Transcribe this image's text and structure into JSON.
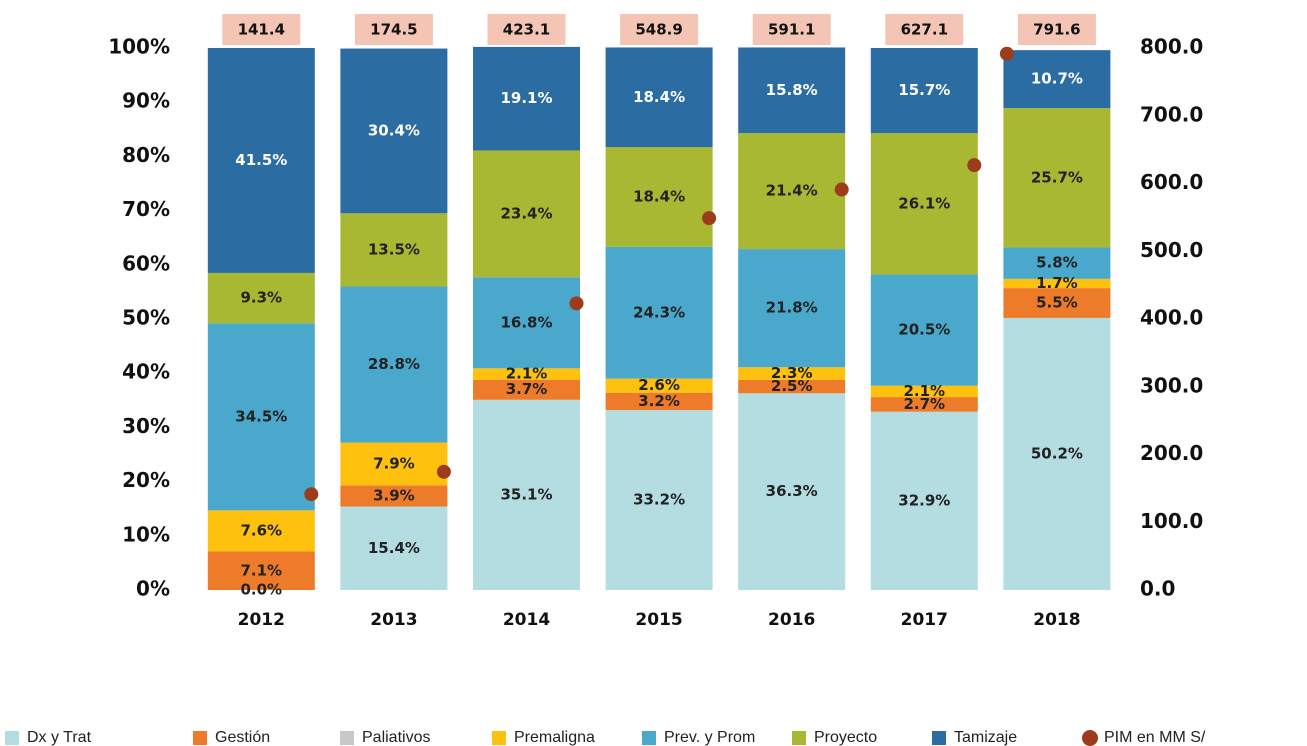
{
  "chart_data": {
    "type": "stacked_bar",
    "categories": [
      "2012",
      "2013",
      "2014",
      "2015",
      "2016",
      "2017",
      "2018"
    ],
    "series": [
      {
        "name": "Dx y Trat",
        "color": "#b3dde0",
        "label_color": "#222222",
        "values": [
          0.0,
          15.4,
          35.1,
          33.2,
          36.3,
          32.9,
          50.2
        ],
        "value_labels": [
          "0.0%",
          "15.4%",
          "35.1%",
          "33.2%",
          "36.3%",
          "32.9%",
          "50.2%"
        ]
      },
      {
        "name": "Gestión",
        "color": "#ee7b2a",
        "label_color": "#222222",
        "values": [
          7.1,
          3.9,
          3.7,
          3.2,
          2.5,
          2.7,
          5.5
        ],
        "value_labels": [
          "7.1%",
          "3.9%",
          "3.7%",
          "3.2%",
          "2.5%",
          "2.7%",
          "5.5%"
        ]
      },
      {
        "name": "Paliativos",
        "color": "#c8c8c8",
        "label_color": "#222222",
        "values": [
          0,
          0,
          0,
          0,
          0,
          0,
          0
        ]
      },
      {
        "name": "Premaligna",
        "color": "#fec10e",
        "label_color": "#222222",
        "values": [
          7.6,
          7.9,
          2.1,
          2.6,
          2.3,
          2.1,
          1.7
        ],
        "value_labels": [
          "7.6%",
          "7.9%",
          "2.1%",
          "2.6%",
          "2.3%",
          "2.1%",
          "1.7%"
        ]
      },
      {
        "name": "Prev. y Prom",
        "color": "#4aa8cc",
        "label_color": "#222222",
        "values": [
          34.5,
          28.8,
          16.8,
          24.3,
          21.8,
          20.5,
          5.8
        ],
        "value_labels": [
          "34.5%",
          "28.8%",
          "16.8%",
          "24.3%",
          "21.8%",
          "20.5%",
          "5.8%"
        ]
      },
      {
        "name": "Proyecto",
        "color": "#a9b833",
        "label_color": "#222222",
        "values": [
          9.3,
          13.5,
          23.4,
          18.4,
          21.4,
          26.1,
          25.7
        ],
        "value_labels": [
          "9.3%",
          "13.5%",
          "23.4%",
          "18.4%",
          "21.4%",
          "26.1%",
          "25.7%"
        ]
      },
      {
        "name": "Tamizaje",
        "color": "#2b6ca3",
        "label_color": "#ffffff",
        "values": [
          41.5,
          30.4,
          19.1,
          18.4,
          15.8,
          15.7,
          10.7
        ],
        "value_labels": [
          "41.5%",
          "30.4%",
          "19.1%",
          "18.4%",
          "15.8%",
          "15.7%",
          "10.7%"
        ]
      },
      {
        "name": "PIM en MM S/",
        "color": "#9c3c1c",
        "axis": "y2",
        "values": [
          141.4,
          174.5,
          423.1,
          548.9,
          591.1,
          627.1,
          791.6
        ]
      }
    ],
    "label_box_color": "#f4c5b5",
    "ylim": [
      0,
      100
    ],
    "yticks": [
      {
        "value": 0,
        "label": "0%"
      },
      {
        "value": 10,
        "label": "10%"
      },
      {
        "value": 20,
        "label": "20%"
      },
      {
        "value": 30,
        "label": "30%"
      },
      {
        "value": 40,
        "label": "40%"
      },
      {
        "value": 50,
        "label": "50%"
      },
      {
        "value": 60,
        "label": "60%"
      },
      {
        "value": 70,
        "label": "70%"
      },
      {
        "value": 80,
        "label": "80%"
      },
      {
        "value": 90,
        "label": "90%"
      },
      {
        "value": 100,
        "label": "100%"
      }
    ],
    "y2lim": [
      0,
      800
    ],
    "y2ticks": [
      {
        "value": 0,
        "label": "0.0"
      },
      {
        "value": 100,
        "label": "100.0"
      },
      {
        "value": 200,
        "label": "200.0"
      },
      {
        "value": 300,
        "label": "300.0"
      },
      {
        "value": 400,
        "label": "400.0"
      },
      {
        "value": 500,
        "label": "500.0"
      },
      {
        "value": 600,
        "label": "600.0"
      },
      {
        "value": 700,
        "label": "700.0"
      },
      {
        "value": 800,
        "label": "800.0"
      }
    ],
    "legend": "bottom"
  }
}
